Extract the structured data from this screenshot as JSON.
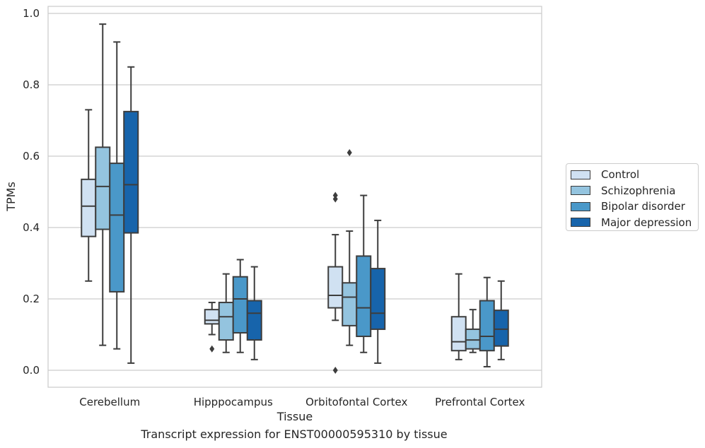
{
  "chart_data": {
    "type": "box",
    "xlabel": "Tissue",
    "ylabel": "TPMs",
    "caption": "Transcript expression for ENST00000595310 by tissue",
    "ylim": [
      -0.045,
      1.02
    ],
    "yticks": [
      "0.0",
      "0.2",
      "0.4",
      "0.6",
      "0.8",
      "1.0"
    ],
    "grid": true,
    "legend_position": "right",
    "categories": [
      "Cerebellum",
      "Hipppocampus",
      "Orbitofontal Cortex",
      "Prefrontal Cortex"
    ],
    "series": [
      {
        "name": "Control",
        "color": "#d0e1f2",
        "boxes": [
          {
            "whisker_low": 0.25,
            "q1": 0.375,
            "median": 0.46,
            "q3": 0.535,
            "whisker_high": 0.73,
            "outliers": []
          },
          {
            "whisker_low": 0.1,
            "q1": 0.13,
            "median": 0.14,
            "q3": 0.17,
            "whisker_high": 0.19,
            "outliers": [
              0.06
            ]
          },
          {
            "whisker_low": 0.14,
            "q1": 0.175,
            "median": 0.21,
            "q3": 0.29,
            "whisker_high": 0.38,
            "outliers": [
              0.49,
              0.48,
              0.0
            ]
          },
          {
            "whisker_low": 0.03,
            "q1": 0.055,
            "median": 0.08,
            "q3": 0.15,
            "whisker_high": 0.27,
            "outliers": []
          }
        ]
      },
      {
        "name": "Schizophrenia",
        "color": "#94c4df",
        "boxes": [
          {
            "whisker_low": 0.07,
            "q1": 0.395,
            "median": 0.515,
            "q3": 0.625,
            "whisker_high": 0.97,
            "outliers": []
          },
          {
            "whisker_low": 0.05,
            "q1": 0.085,
            "median": 0.15,
            "q3": 0.19,
            "whisker_high": 0.27,
            "outliers": []
          },
          {
            "whisker_low": 0.07,
            "q1": 0.125,
            "median": 0.205,
            "q3": 0.245,
            "whisker_high": 0.39,
            "outliers": [
              0.61
            ]
          },
          {
            "whisker_low": 0.05,
            "q1": 0.06,
            "median": 0.085,
            "q3": 0.115,
            "whisker_high": 0.17,
            "outliers": []
          }
        ]
      },
      {
        "name": "Bipolar disorder",
        "color": "#4a98c9",
        "boxes": [
          {
            "whisker_low": 0.06,
            "q1": 0.22,
            "median": 0.435,
            "q3": 0.58,
            "whisker_high": 0.92,
            "outliers": []
          },
          {
            "whisker_low": 0.05,
            "q1": 0.105,
            "median": 0.2,
            "q3": 0.262,
            "whisker_high": 0.31,
            "outliers": []
          },
          {
            "whisker_low": 0.05,
            "q1": 0.095,
            "median": 0.175,
            "q3": 0.32,
            "whisker_high": 0.49,
            "outliers": []
          },
          {
            "whisker_low": 0.01,
            "q1": 0.055,
            "median": 0.095,
            "q3": 0.195,
            "whisker_high": 0.26,
            "outliers": []
          }
        ]
      },
      {
        "name": "Major depression",
        "color": "#1764ab",
        "boxes": [
          {
            "whisker_low": 0.02,
            "q1": 0.385,
            "median": 0.52,
            "q3": 0.725,
            "whisker_high": 0.85,
            "outliers": []
          },
          {
            "whisker_low": 0.03,
            "q1": 0.085,
            "median": 0.16,
            "q3": 0.195,
            "whisker_high": 0.29,
            "outliers": []
          },
          {
            "whisker_low": 0.02,
            "q1": 0.115,
            "median": 0.16,
            "q3": 0.285,
            "whisker_high": 0.42,
            "outliers": []
          },
          {
            "whisker_low": 0.03,
            "q1": 0.068,
            "median": 0.115,
            "q3": 0.168,
            "whisker_high": 0.25,
            "outliers": []
          }
        ]
      }
    ]
  }
}
